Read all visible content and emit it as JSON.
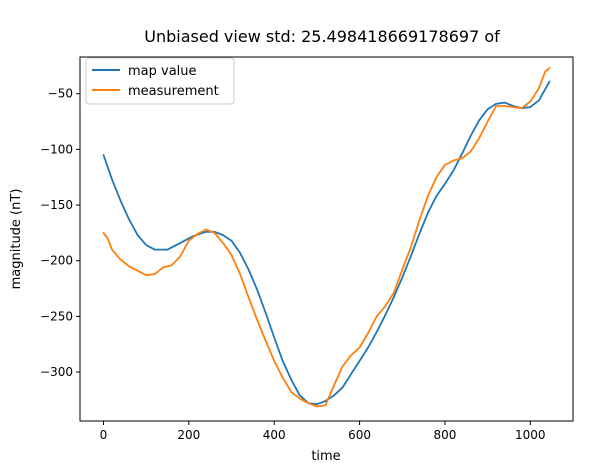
{
  "chart_data": {
    "type": "line",
    "title": "Unbiased view std: 25.498418669178697 of",
    "xlabel": "time",
    "ylabel": "magnitude (nT)",
    "xlim": [
      -55,
      1100
    ],
    "ylim": [
      -344,
      -17
    ],
    "xticks": [
      0,
      200,
      400,
      600,
      800,
      1000
    ],
    "yticks": [
      -300,
      -250,
      -200,
      -150,
      -100,
      -50
    ],
    "legend": {
      "position": "top-left"
    },
    "grid": false,
    "series": [
      {
        "name": "map value",
        "color": "#1f77b4",
        "x": [
          0,
          20,
          40,
          60,
          80,
          100,
          120,
          150,
          180,
          210,
          240,
          260,
          280,
          300,
          320,
          340,
          360,
          380,
          400,
          420,
          440,
          460,
          480,
          500,
          520,
          540,
          560,
          580,
          600,
          620,
          640,
          660,
          680,
          700,
          720,
          740,
          760,
          780,
          800,
          820,
          840,
          860,
          880,
          900,
          920,
          940,
          960,
          980,
          1000,
          1020,
          1045
        ],
        "y": [
          -105,
          -127,
          -146,
          -163,
          -177,
          -186,
          -190,
          -190,
          -184,
          -178,
          -174,
          -174,
          -177,
          -182,
          -193,
          -208,
          -226,
          -247,
          -269,
          -290,
          -307,
          -321,
          -328,
          -329,
          -326,
          -321,
          -314,
          -302,
          -290,
          -278,
          -264,
          -249,
          -233,
          -215,
          -196,
          -176,
          -157,
          -142,
          -131,
          -119,
          -104,
          -88,
          -74,
          -64,
          -59,
          -58,
          -61,
          -63,
          -62,
          -56,
          -39
        ]
      },
      {
        "name": "measurement",
        "color": "#ff7f0e",
        "x": [
          0,
          10,
          20,
          40,
          60,
          80,
          100,
          120,
          140,
          160,
          180,
          200,
          220,
          240,
          260,
          280,
          300,
          320,
          340,
          360,
          380,
          400,
          420,
          440,
          460,
          480,
          500,
          520,
          540,
          560,
          580,
          600,
          620,
          640,
          660,
          680,
          700,
          720,
          740,
          760,
          780,
          800,
          820,
          840,
          860,
          880,
          900,
          920,
          940,
          960,
          980,
          1000,
          1020,
          1035,
          1045
        ],
        "y": [
          -175,
          -180,
          -190,
          -199,
          -205,
          -209,
          -213,
          -212,
          -206,
          -204,
          -196,
          -182,
          -176,
          -172,
          -175,
          -184,
          -195,
          -212,
          -233,
          -253,
          -272,
          -290,
          -305,
          -318,
          -324,
          -328,
          -331,
          -330,
          -312,
          -295,
          -285,
          -278,
          -265,
          -250,
          -241,
          -229,
          -208,
          -188,
          -164,
          -142,
          -125,
          -114,
          -110,
          -108,
          -102,
          -90,
          -75,
          -61,
          -61,
          -62,
          -63,
          -57,
          -45,
          -30,
          -27
        ]
      }
    ]
  }
}
